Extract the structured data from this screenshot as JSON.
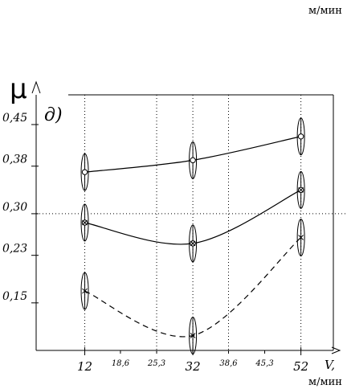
{
  "chart_data": {
    "type": "line",
    "ylabel": "μ",
    "panel_label": "д)",
    "xlabel": "V,",
    "x_unit": "м/мин",
    "xlim": [
      3,
      58
    ],
    "ylim": [
      0.07,
      0.5
    ],
    "x_major_ticks": [
      {
        "value": 12,
        "label": "12"
      },
      {
        "value": 32,
        "label": "32"
      },
      {
        "value": 52,
        "label": "52"
      }
    ],
    "x_minor_ticks": [
      {
        "value": 18.6,
        "label": "18,6"
      },
      {
        "value": 25.3,
        "label": "25,3"
      },
      {
        "value": 38.6,
        "label": "38,6"
      },
      {
        "value": 45.3,
        "label": "45,3"
      }
    ],
    "y_ticks": [
      {
        "value": 0.45,
        "label": "0,45"
      },
      {
        "value": 0.38,
        "label": "0,38"
      },
      {
        "value": 0.3,
        "label": "0,30"
      },
      {
        "value": 0.23,
        "label": "0,23"
      },
      {
        "value": 0.15,
        "label": "0,15"
      }
    ],
    "grid": {
      "vertical_dotted_at_x": [
        25.3,
        38.6
      ],
      "horizontal_dotted_at_y": [
        0.3
      ]
    },
    "series": [
      {
        "marker": "circle",
        "style": "solid",
        "x": [
          12,
          32,
          52
        ],
        "y": [
          0.37,
          0.39,
          0.43
        ]
      },
      {
        "marker": "x-circle",
        "style": "solid",
        "x": [
          12,
          32,
          52
        ],
        "y": [
          0.285,
          0.25,
          0.34
        ]
      },
      {
        "marker": "x",
        "style": "dashed",
        "x": [
          12,
          32,
          52
        ],
        "y": [
          0.17,
          0.095,
          0.26
        ]
      }
    ]
  }
}
